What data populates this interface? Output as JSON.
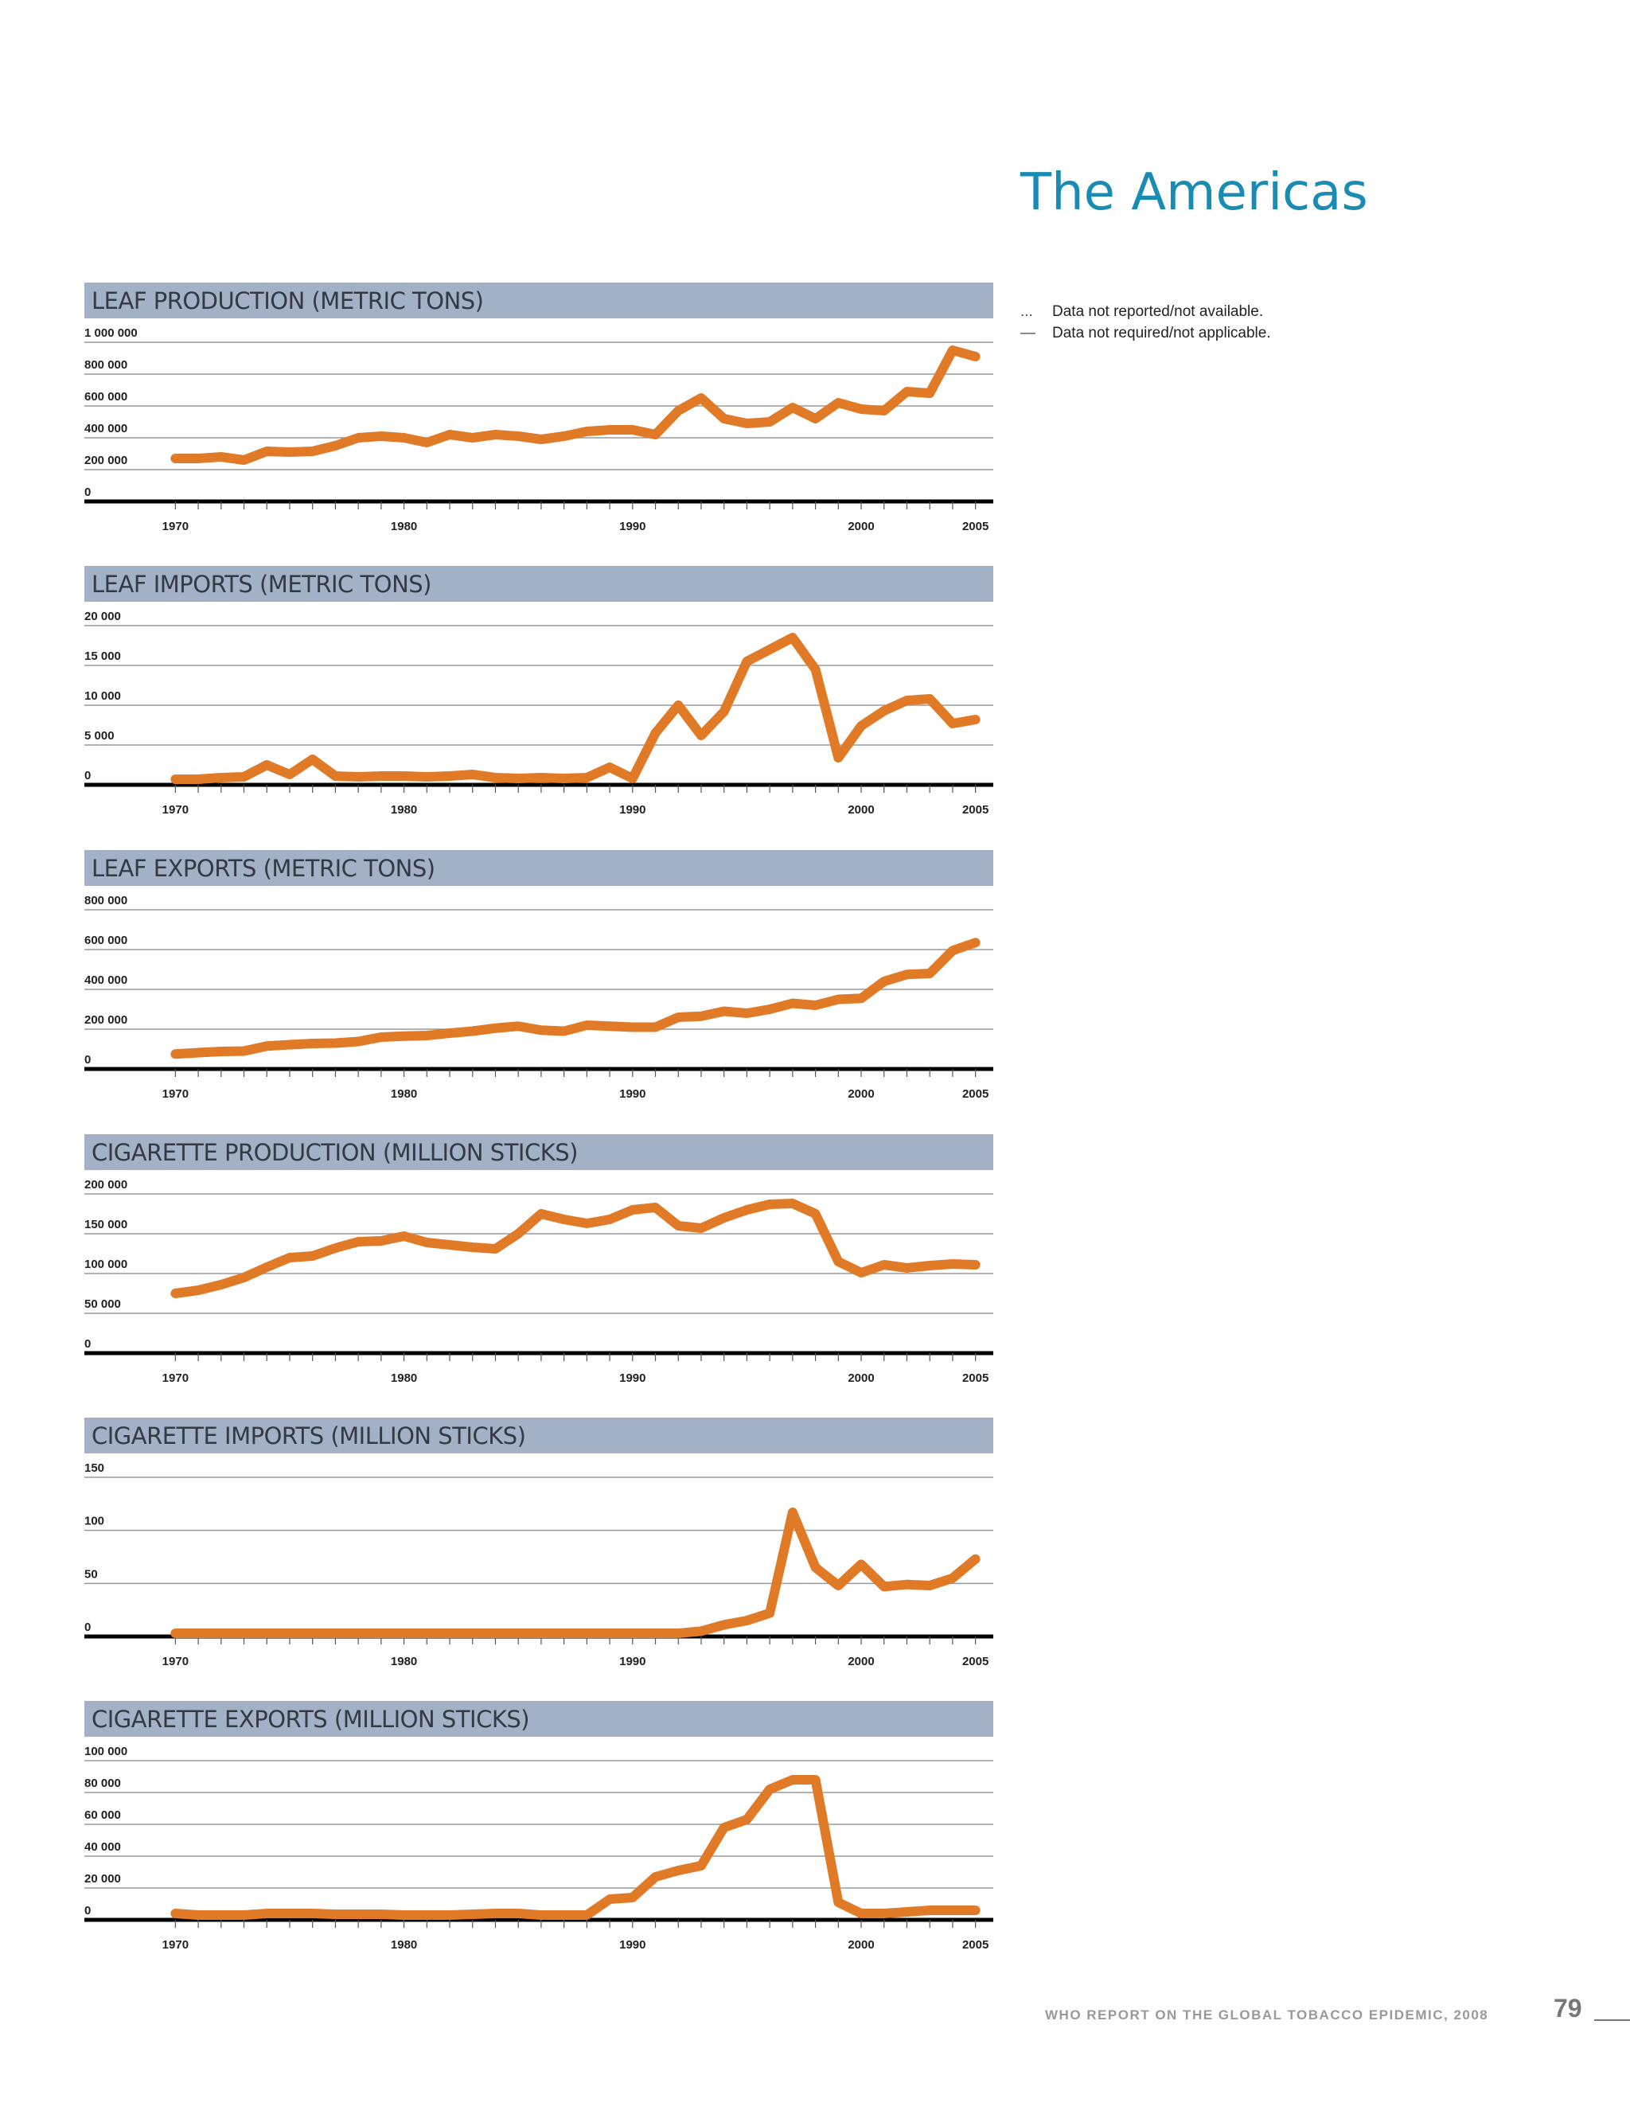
{
  "page": {
    "region_title": "The Americas",
    "legend": [
      {
        "symbol": "...",
        "text": "Data not reported/not available."
      },
      {
        "symbol": "—",
        "text": "Data not required/not applicable."
      }
    ],
    "footer_text": "WHO REPORT ON THE GLOBAL TOBACCO EPIDEMIC, 2008",
    "page_number": "79"
  },
  "chart_data": [
    {
      "type": "line",
      "title": "LEAF PRODUCTION (METRIC TONS)",
      "xlabel": "",
      "ylabel": "",
      "x": [
        1970,
        1971,
        1972,
        1973,
        1974,
        1975,
        1976,
        1977,
        1978,
        1979,
        1980,
        1981,
        1982,
        1983,
        1984,
        1985,
        1986,
        1987,
        1988,
        1989,
        1990,
        1991,
        1992,
        1993,
        1994,
        1995,
        1996,
        1997,
        1998,
        1999,
        2000,
        2001,
        2002,
        2003,
        2004,
        2005
      ],
      "y_ticks": [
        0,
        200000,
        400000,
        600000,
        800000,
        1000000
      ],
      "y_tick_labels": [
        "0",
        "200 000",
        "400 000",
        "600 000",
        "800 000",
        "1 000 000"
      ],
      "x_tick_labels": {
        "1970": "1970",
        "1980": "1980",
        "1990": "1990",
        "2000": "2000",
        "2005": "2005"
      },
      "ylim": [
        0,
        1000000
      ],
      "xlim": [
        1969.5,
        2005.5
      ],
      "color": "#e07a26",
      "series": [
        {
          "name": "Leaf production",
          "values": [
            270000,
            270000,
            280000,
            260000,
            315000,
            310000,
            315000,
            350000,
            400000,
            410000,
            400000,
            370000,
            420000,
            400000,
            420000,
            410000,
            390000,
            410000,
            440000,
            450000,
            450000,
            420000,
            570000,
            650000,
            520000,
            490000,
            500000,
            590000,
            520000,
            620000,
            580000,
            570000,
            690000,
            680000,
            950000,
            910000
          ]
        }
      ]
    },
    {
      "type": "line",
      "title": "LEAF IMPORTS (METRIC TONS)",
      "xlabel": "",
      "ylabel": "",
      "x": [
        1970,
        1971,
        1972,
        1973,
        1974,
        1975,
        1976,
        1977,
        1978,
        1979,
        1980,
        1981,
        1982,
        1983,
        1984,
        1985,
        1986,
        1987,
        1988,
        1989,
        1990,
        1991,
        1992,
        1993,
        1994,
        1995,
        1996,
        1997,
        1998,
        1999,
        2000,
        2001,
        2002,
        2003,
        2004,
        2005
      ],
      "y_ticks": [
        0,
        5000,
        10000,
        15000,
        20000
      ],
      "y_tick_labels": [
        "0",
        "5 000",
        "10 000",
        "15 000",
        "20 000"
      ],
      "x_tick_labels": {
        "1970": "1970",
        "1980": "1980",
        "1990": "1990",
        "2000": "2000",
        "2005": "2005"
      },
      "ylim": [
        0,
        20000
      ],
      "xlim": [
        1969.5,
        2005.5
      ],
      "color": "#e07a26",
      "series": [
        {
          "name": "Leaf imports",
          "values": [
            700,
            700,
            900,
            1000,
            2500,
            1300,
            3200,
            1100,
            1000,
            1100,
            1100,
            1000,
            1100,
            1300,
            900,
            800,
            900,
            800,
            900,
            2200,
            800,
            6500,
            10000,
            6200,
            9200,
            15500,
            17000,
            18500,
            14500,
            3400,
            7400,
            9300,
            10600,
            10800,
            7700,
            8200
          ]
        }
      ]
    },
    {
      "type": "line",
      "title": "LEAF EXPORTS (METRIC TONS)",
      "xlabel": "",
      "ylabel": "",
      "x": [
        1970,
        1971,
        1972,
        1973,
        1974,
        1975,
        1976,
        1977,
        1978,
        1979,
        1980,
        1981,
        1982,
        1983,
        1984,
        1985,
        1986,
        1987,
        1988,
        1989,
        1990,
        1991,
        1992,
        1993,
        1994,
        1995,
        1996,
        1997,
        1998,
        1999,
        2000,
        2001,
        2002,
        2003,
        2004,
        2005
      ],
      "y_ticks": [
        0,
        200000,
        400000,
        600000,
        800000
      ],
      "y_tick_labels": [
        "0",
        "200 000",
        "400 000",
        "600 000",
        "800 000"
      ],
      "x_tick_labels": {
        "1970": "1970",
        "1980": "1980",
        "1990": "1990",
        "2000": "2000",
        "2005": "2005"
      },
      "ylim": [
        0,
        800000
      ],
      "xlim": [
        1969.5,
        2005.5
      ],
      "color": "#e07a26",
      "series": [
        {
          "name": "Leaf exports",
          "values": [
            75000,
            82000,
            88000,
            90000,
            115000,
            122000,
            128000,
            130000,
            138000,
            160000,
            165000,
            168000,
            180000,
            190000,
            205000,
            215000,
            195000,
            190000,
            220000,
            215000,
            210000,
            210000,
            260000,
            265000,
            290000,
            280000,
            300000,
            330000,
            320000,
            350000,
            355000,
            440000,
            475000,
            480000,
            595000,
            635000
          ]
        }
      ]
    },
    {
      "type": "line",
      "title": "CIGARETTE PRODUCTION (MILLION STICKS)",
      "xlabel": "",
      "ylabel": "",
      "x": [
        1970,
        1971,
        1972,
        1973,
        1974,
        1975,
        1976,
        1977,
        1978,
        1979,
        1980,
        1981,
        1982,
        1983,
        1984,
        1985,
        1986,
        1987,
        1988,
        1989,
        1990,
        1991,
        1992,
        1993,
        1994,
        1995,
        1996,
        1997,
        1998,
        1999,
        2000,
        2001,
        2002,
        2003,
        2004,
        2005
      ],
      "y_ticks": [
        0,
        50000,
        100000,
        150000,
        200000
      ],
      "y_tick_labels": [
        "0",
        "50 000",
        "100 000",
        "150 000",
        "200 000"
      ],
      "x_tick_labels": {
        "1970": "1970",
        "1980": "1980",
        "1990": "1990",
        "2000": "2000",
        "2005": "2005"
      },
      "ylim": [
        0,
        200000
      ],
      "xlim": [
        1969.5,
        2005.5
      ],
      "color": "#e07a26",
      "series": [
        {
          "name": "Cigarette production",
          "values": [
            75000,
            79000,
            86000,
            95000,
            108000,
            120000,
            122000,
            132000,
            140000,
            141000,
            147000,
            139000,
            136000,
            133000,
            131000,
            150000,
            175000,
            168000,
            163000,
            168000,
            180000,
            183000,
            160000,
            157000,
            170000,
            180000,
            187000,
            188000,
            175000,
            115000,
            101000,
            111000,
            107000,
            110000,
            112000,
            111000
          ]
        }
      ]
    },
    {
      "type": "line",
      "title": "CIGARETTE IMPORTS (MILLION STICKS)",
      "xlabel": "",
      "ylabel": "",
      "x": [
        1970,
        1971,
        1972,
        1973,
        1974,
        1975,
        1976,
        1977,
        1978,
        1979,
        1980,
        1981,
        1982,
        1983,
        1984,
        1985,
        1986,
        1987,
        1988,
        1989,
        1990,
        1991,
        1992,
        1993,
        1994,
        1995,
        1996,
        1997,
        1998,
        1999,
        2000,
        2001,
        2002,
        2003,
        2004,
        2005
      ],
      "y_ticks": [
        0,
        50,
        100,
        150
      ],
      "y_tick_labels": [
        "0",
        "50",
        "100",
        "150"
      ],
      "x_tick_labels": {
        "1970": "1970",
        "1980": "1980",
        "1990": "1990",
        "2000": "2000",
        "2005": "2005"
      },
      "ylim": [
        0,
        150
      ],
      "xlim": [
        1969.5,
        2005.5
      ],
      "color": "#e07a26",
      "series": [
        {
          "name": "Cigarette imports",
          "values": [
            3,
            3,
            3,
            3,
            3,
            3,
            3,
            3,
            3,
            3,
            3,
            3,
            3,
            3,
            3,
            3,
            3,
            3,
            3,
            3,
            3,
            3,
            3,
            5,
            11,
            15,
            22,
            117,
            65,
            48,
            68,
            47,
            49,
            48,
            55,
            73
          ]
        }
      ]
    },
    {
      "type": "line",
      "title": "CIGARETTE EXPORTS (MILLION STICKS)",
      "xlabel": "",
      "ylabel": "",
      "x": [
        1970,
        1971,
        1972,
        1973,
        1974,
        1975,
        1976,
        1977,
        1978,
        1979,
        1980,
        1981,
        1982,
        1983,
        1984,
        1985,
        1986,
        1987,
        1988,
        1989,
        1990,
        1991,
        1992,
        1993,
        1994,
        1995,
        1996,
        1997,
        1998,
        1999,
        2000,
        2001,
        2002,
        2003,
        2004,
        2005
      ],
      "y_ticks": [
        0,
        20000,
        40000,
        60000,
        80000,
        100000
      ],
      "y_tick_labels": [
        "0",
        "20 000",
        "40 000",
        "60 000",
        "80 000",
        "100 000"
      ],
      "x_tick_labels": {
        "1970": "1970",
        "1980": "1980",
        "1990": "1990",
        "2000": "2000",
        "2005": "2005"
      },
      "ylim": [
        0,
        100000
      ],
      "xlim": [
        1969.5,
        2005.5
      ],
      "color": "#e07a26",
      "series": [
        {
          "name": "Cigarette exports",
          "values": [
            4000,
            3000,
            3000,
            3000,
            4000,
            4000,
            4000,
            3500,
            3500,
            3500,
            3000,
            3000,
            3000,
            3500,
            4000,
            4000,
            3000,
            3000,
            3000,
            13000,
            14000,
            27000,
            31000,
            34000,
            58000,
            63000,
            82000,
            88000,
            88000,
            11000,
            4000,
            4000,
            5000,
            6000,
            6000,
            6000
          ]
        }
      ]
    }
  ]
}
